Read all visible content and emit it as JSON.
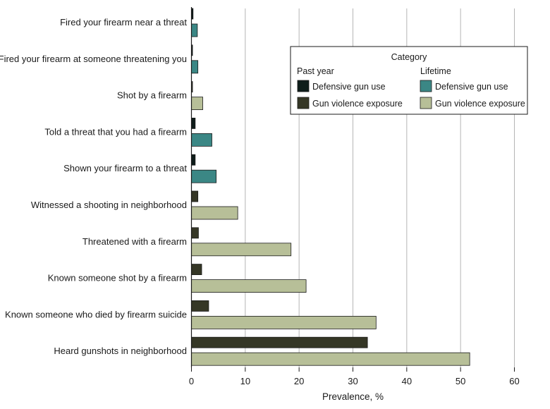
{
  "chart_data": {
    "type": "bar",
    "orientation": "horizontal",
    "title": "",
    "xlabel": "Prevalence, %",
    "ylabel": "",
    "xlim": [
      0,
      60
    ],
    "xticks": [
      0,
      10,
      20,
      30,
      40,
      50,
      60
    ],
    "grid": "vertical",
    "categories": [
      "Fired your firearm near a threat",
      "Fired your firearm at someone threatening you",
      "Shot by a firearm",
      "Told a threat that you had a firearm",
      "Shown your firearm to a threat",
      "Witnessed a shooting in neighborhood",
      "Threatened with a firearm",
      "Known someone shot by a firearm",
      "Known someone who died by firearm suicide",
      "Heard gunshots in neighborhood"
    ],
    "series": [
      {
        "name": "Past year",
        "values": [
          0.3,
          0.2,
          0.2,
          0.7,
          0.7,
          1.2,
          1.3,
          1.9,
          3.2,
          32.7
        ]
      },
      {
        "name": "Lifetime",
        "values": [
          1.1,
          1.2,
          2.1,
          3.8,
          4.6,
          8.6,
          18.5,
          21.3,
          34.3,
          51.7
        ]
      }
    ],
    "category_group": [
      "Defensive gun use",
      "Defensive gun use",
      "Gun violence exposure",
      "Defensive gun use",
      "Defensive gun use",
      "Gun violence exposure",
      "Gun violence exposure",
      "Gun violence exposure",
      "Gun violence exposure",
      "Gun violence exposure"
    ],
    "legend": {
      "title": "Category",
      "placement": "top-right",
      "columns": [
        {
          "heading": "Past year",
          "entries": [
            {
              "label": "Defensive gun use",
              "color": "#0e1d1a"
            },
            {
              "label": "Gun violence exposure",
              "color": "#353726"
            }
          ]
        },
        {
          "heading": "Lifetime",
          "entries": [
            {
              "label": "Defensive gun use",
              "color": "#3b8785"
            },
            {
              "label": "Gun violence exposure",
              "color": "#b7bf98"
            }
          ]
        }
      ]
    },
    "colors": {
      "past_year_defensive": "#0e1d1a",
      "past_year_exposure": "#353726",
      "lifetime_defensive": "#3b8785",
      "lifetime_exposure": "#b7bf98",
      "grid": "#b5b5b5",
      "bar_stroke": "#1a1a1a"
    }
  }
}
